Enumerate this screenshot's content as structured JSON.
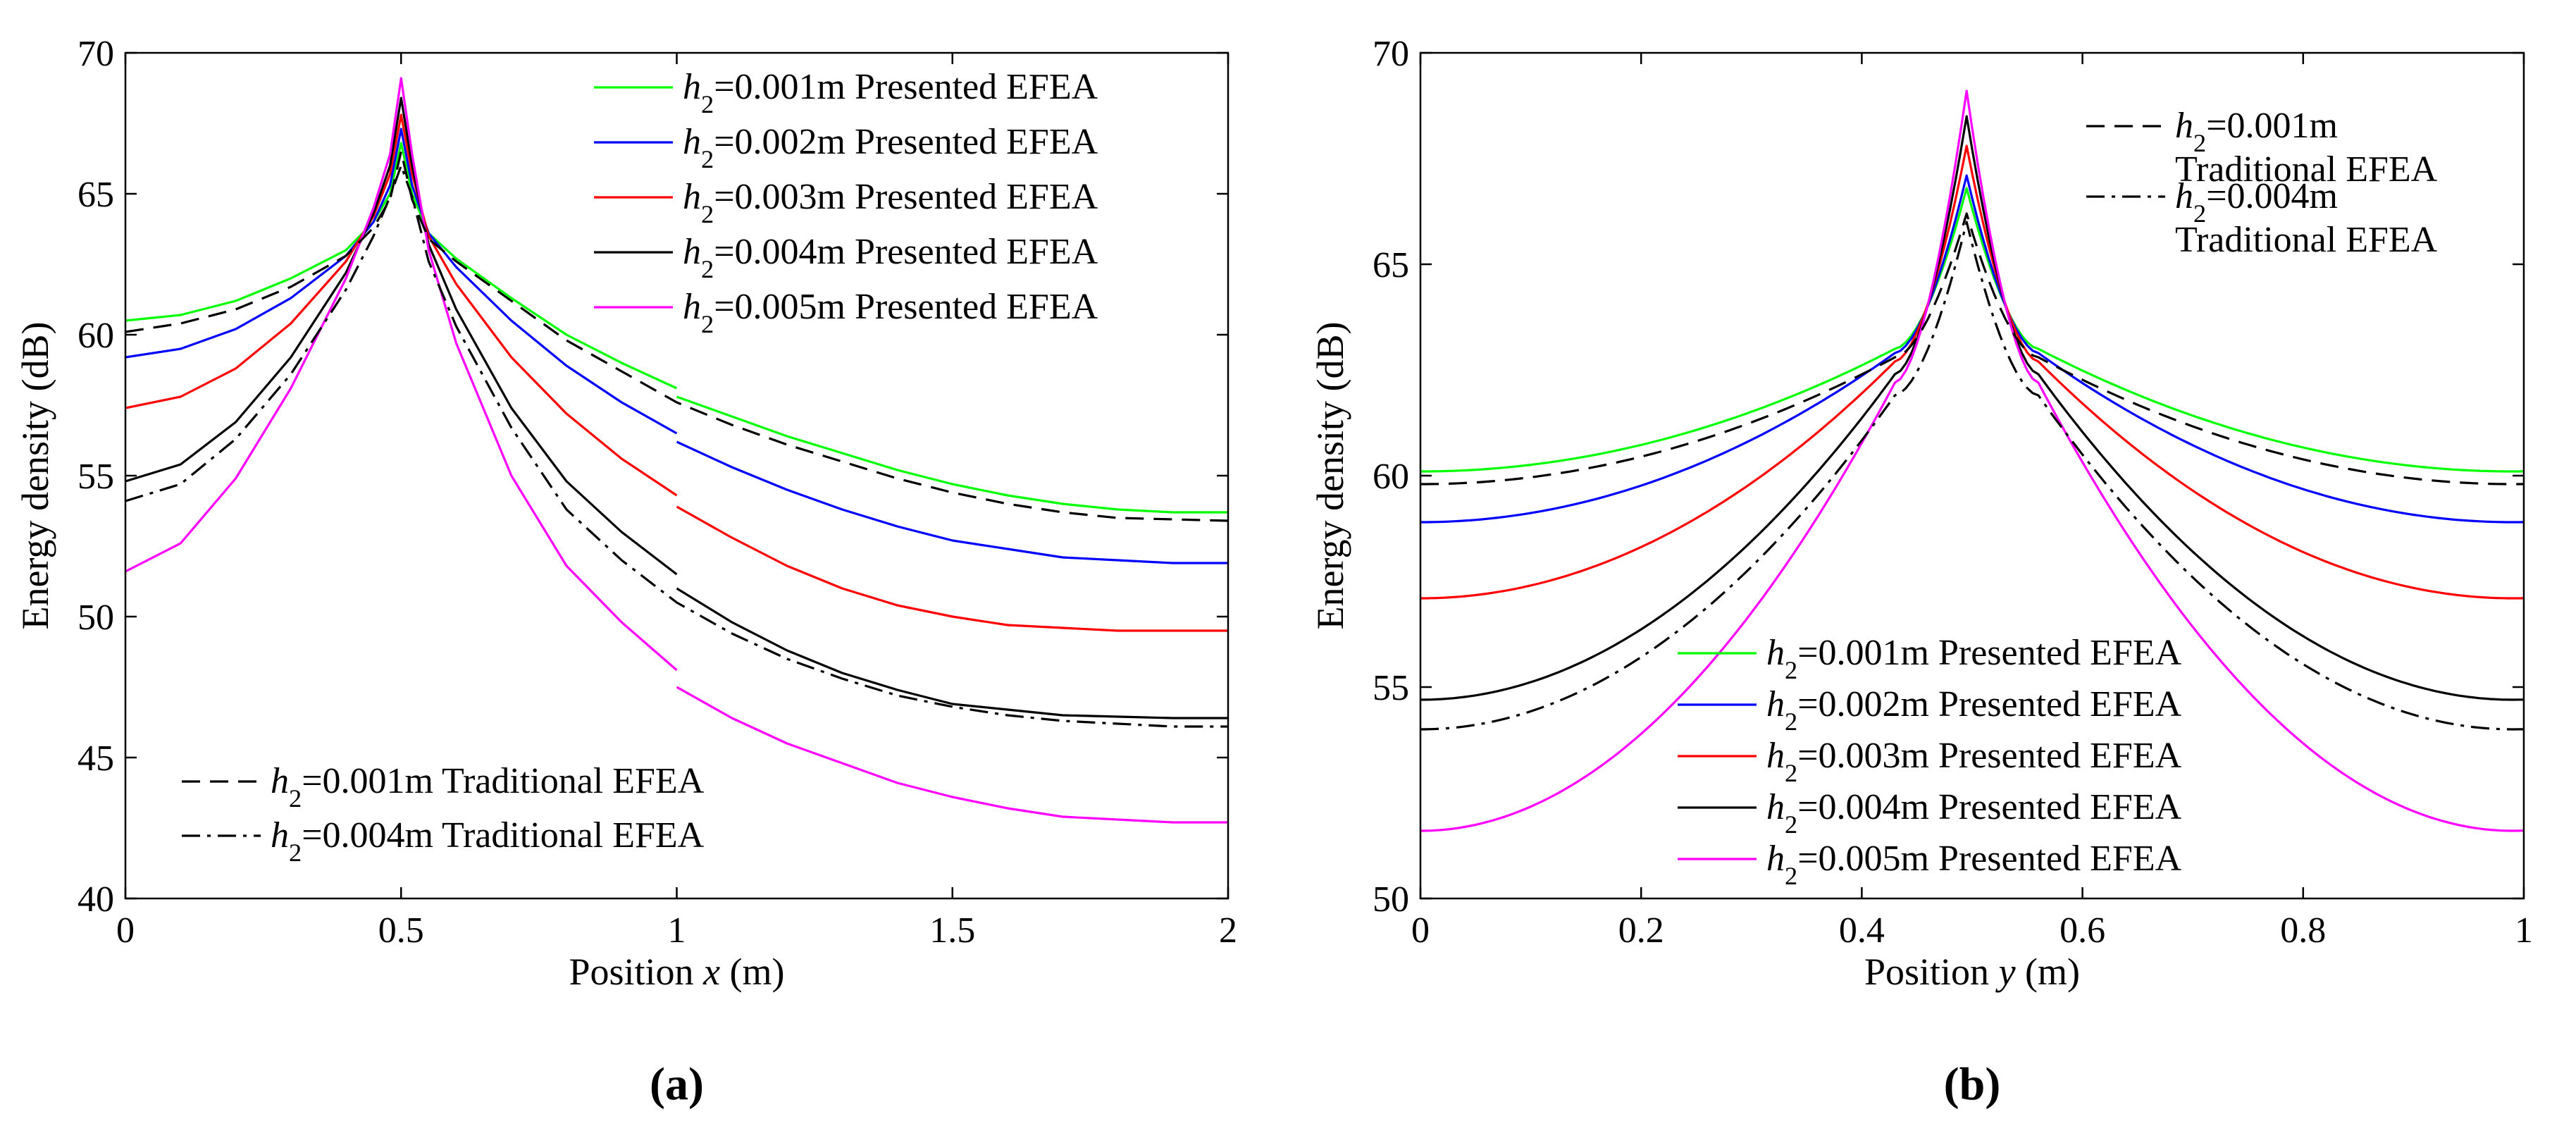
{
  "chart_data": [
    {
      "panel_label": "(a)",
      "type": "line",
      "xlabel_prefix": "Position ",
      "xlabel_var": "x",
      "xlabel_suffix": " (m)",
      "ylabel": "Energy density (dB)",
      "xlim": [
        0,
        2
      ],
      "ylim": [
        40,
        70
      ],
      "xticks": [
        0,
        0.5,
        1,
        1.5,
        2
      ],
      "xtick_labels": [
        "0",
        "0.5",
        "1",
        "1.5",
        "2"
      ],
      "yticks": [
        40,
        45,
        50,
        55,
        60,
        65,
        70
      ],
      "ytick_labels": [
        "40",
        "45",
        "50",
        "55",
        "60",
        "65",
        "70"
      ],
      "legend_placement": "top-right",
      "legend2_placement": "bottom-left",
      "series": [
        {
          "id": "a-h1-pres",
          "h": "0.001",
          "label": "=0.001m Presented EFEA",
          "legend": 1,
          "color": "#00ff00",
          "dash": "solid",
          "x": [
            0,
            0.1,
            0.2,
            0.3,
            0.4,
            0.45,
            0.48,
            0.5,
            0.52,
            0.55,
            0.6,
            0.7,
            0.8,
            0.9,
            1.0,
            1.0,
            1.1,
            1.2,
            1.3,
            1.4,
            1.5,
            1.6,
            1.7,
            1.8,
            1.9,
            2.0
          ],
          "y": [
            60.5,
            60.7,
            61.2,
            62.0,
            63.0,
            64.0,
            65.0,
            66.8,
            65.0,
            63.6,
            62.7,
            61.3,
            60.0,
            59.0,
            58.1,
            57.8,
            57.1,
            56.4,
            55.8,
            55.2,
            54.7,
            54.3,
            54.0,
            53.8,
            53.7,
            53.7
          ]
        },
        {
          "id": "a-h2-pres",
          "h": "0.002",
          "label": "=0.002m Presented EFEA",
          "legend": 1,
          "color": "#0000ff",
          "dash": "solid",
          "x": [
            0,
            0.1,
            0.2,
            0.3,
            0.4,
            0.45,
            0.48,
            0.5,
            0.52,
            0.55,
            0.6,
            0.7,
            0.8,
            0.9,
            1.0,
            1.0,
            1.1,
            1.2,
            1.3,
            1.4,
            1.5,
            1.6,
            1.7,
            1.8,
            1.9,
            2.0
          ],
          "y": [
            59.2,
            59.5,
            60.2,
            61.3,
            62.8,
            64.0,
            65.3,
            67.3,
            65.3,
            63.6,
            62.4,
            60.5,
            58.9,
            57.6,
            56.5,
            56.2,
            55.3,
            54.5,
            53.8,
            53.2,
            52.7,
            52.4,
            52.1,
            52.0,
            51.9,
            51.9
          ]
        },
        {
          "id": "a-h3-pres",
          "h": "0.003",
          "label": "=0.003m Presented EFEA",
          "legend": 1,
          "color": "#ff0000",
          "dash": "solid",
          "x": [
            0,
            0.1,
            0.2,
            0.3,
            0.4,
            0.45,
            0.48,
            0.5,
            0.52,
            0.55,
            0.6,
            0.7,
            0.8,
            0.9,
            1.0,
            1.0,
            1.1,
            1.2,
            1.3,
            1.4,
            1.5,
            1.6,
            1.7,
            1.8,
            1.9,
            2.0
          ],
          "y": [
            57.4,
            57.8,
            58.8,
            60.4,
            62.6,
            64.2,
            65.7,
            67.8,
            65.7,
            63.5,
            61.8,
            59.2,
            57.2,
            55.6,
            54.3,
            53.9,
            52.8,
            51.8,
            51.0,
            50.4,
            50.0,
            49.7,
            49.6,
            49.5,
            49.5,
            49.5
          ]
        },
        {
          "id": "a-h4-pres",
          "h": "0.004",
          "label": "=0.004m Presented EFEA",
          "legend": 1,
          "color": "#000000",
          "dash": "solid",
          "x": [
            0,
            0.1,
            0.2,
            0.3,
            0.4,
            0.45,
            0.48,
            0.5,
            0.52,
            0.55,
            0.6,
            0.7,
            0.8,
            0.9,
            1.0,
            1.0,
            1.1,
            1.2,
            1.3,
            1.4,
            1.5,
            1.6,
            1.7,
            1.8,
            1.9,
            2.0
          ],
          "y": [
            54.8,
            55.4,
            56.9,
            59.2,
            62.2,
            64.3,
            66.0,
            68.4,
            66.0,
            63.2,
            60.9,
            57.4,
            54.8,
            53.0,
            51.5,
            51.0,
            49.8,
            48.8,
            48.0,
            47.4,
            46.9,
            46.7,
            46.5,
            46.45,
            46.4,
            46.4
          ]
        },
        {
          "id": "a-h5-pres",
          "h": "0.005",
          "label": "=0.005m Presented EFEA",
          "legend": 1,
          "color": "#ff00ff",
          "dash": "solid",
          "x": [
            0,
            0.1,
            0.2,
            0.3,
            0.4,
            0.45,
            0.48,
            0.5,
            0.52,
            0.55,
            0.6,
            0.7,
            0.8,
            0.9,
            1.0,
            1.0,
            1.1,
            1.2,
            1.3,
            1.4,
            1.5,
            1.6,
            1.7,
            1.8,
            1.9,
            2.0
          ],
          "y": [
            51.6,
            52.6,
            54.9,
            58.1,
            62.0,
            64.5,
            66.4,
            69.1,
            66.4,
            63.0,
            59.7,
            55.0,
            51.8,
            49.8,
            48.1,
            47.5,
            46.4,
            45.5,
            44.8,
            44.1,
            43.6,
            43.2,
            42.9,
            42.8,
            42.7,
            42.7
          ]
        },
        {
          "id": "a-h1-trad",
          "h": "0.001",
          "label": "=0.001m Traditional EFEA",
          "legend": 2,
          "color": "#000000",
          "dash": "dash",
          "x": [
            0,
            0.1,
            0.2,
            0.3,
            0.4,
            0.45,
            0.48,
            0.5,
            0.52,
            0.55,
            0.6,
            0.7,
            0.8,
            0.9,
            1.0,
            1.1,
            1.2,
            1.3,
            1.4,
            1.5,
            1.6,
            1.7,
            1.8,
            1.9,
            2.0
          ],
          "y": [
            60.1,
            60.4,
            60.9,
            61.7,
            62.8,
            63.8,
            64.8,
            66.5,
            64.8,
            63.4,
            62.6,
            61.2,
            59.8,
            58.7,
            57.6,
            56.8,
            56.1,
            55.5,
            54.9,
            54.4,
            54.0,
            53.7,
            53.5,
            53.45,
            53.4
          ]
        },
        {
          "id": "a-h4-trad",
          "h": "0.004",
          "label": "=0.004m Traditional EFEA",
          "legend": 2,
          "color": "#000000",
          "dash": "dashdot",
          "x": [
            0,
            0.1,
            0.2,
            0.3,
            0.4,
            0.45,
            0.48,
            0.5,
            0.52,
            0.55,
            0.6,
            0.7,
            0.8,
            0.9,
            1.0,
            1.1,
            1.2,
            1.3,
            1.4,
            1.5,
            1.6,
            1.7,
            1.8,
            1.9,
            2.0
          ],
          "y": [
            54.1,
            54.7,
            56.3,
            58.6,
            61.6,
            63.5,
            64.9,
            66.0,
            64.9,
            62.6,
            60.3,
            56.7,
            53.8,
            52.0,
            50.5,
            49.4,
            48.5,
            47.8,
            47.2,
            46.8,
            46.5,
            46.3,
            46.2,
            46.1,
            46.1
          ]
        }
      ]
    },
    {
      "panel_label": "(b)",
      "type": "line",
      "xlabel_prefix": "Position ",
      "xlabel_var": "y",
      "xlabel_suffix": " (m)",
      "ylabel": "Energy density (dB)",
      "xlim": [
        0,
        1
      ],
      "ylim": [
        50,
        70
      ],
      "xticks": [
        0,
        0.2,
        0.4,
        0.6,
        0.8,
        1.0
      ],
      "xtick_labels": [
        "0",
        "0.2",
        "0.4",
        "0.6",
        "0.8",
        "1"
      ],
      "yticks": [
        50,
        55,
        60,
        65,
        70
      ],
      "ytick_labels": [
        "50",
        "55",
        "60",
        "65",
        "70"
      ],
      "legend_placement": "bottom-center",
      "legend2_placement": "top-right",
      "series": [
        {
          "id": "b-h1-pres",
          "h": "0.001",
          "label": "=0.001m Presented EFEA",
          "legend": 1,
          "color": "#00ff00",
          "dash": "solid",
          "peak": 66.8,
          "edge": 60.1,
          "cross": 63.0
        },
        {
          "id": "b-h2-pres",
          "h": "0.002",
          "label": "=0.002m Presented EFEA",
          "legend": 1,
          "color": "#0000ff",
          "dash": "solid",
          "peak": 67.1,
          "edge": 58.9,
          "cross": 62.9
        },
        {
          "id": "b-h3-pres",
          "h": "0.003",
          "label": "=0.003m Presented EFEA",
          "legend": 1,
          "color": "#ff0000",
          "dash": "solid",
          "peak": 67.8,
          "edge": 57.1,
          "cross": 62.7
        },
        {
          "id": "b-h4-pres",
          "h": "0.004",
          "label": "=0.004m Presented EFEA",
          "legend": 1,
          "color": "#000000",
          "dash": "solid",
          "peak": 68.5,
          "edge": 54.7,
          "cross": 62.4
        },
        {
          "id": "b-h5-pres",
          "h": "0.005",
          "label": "=0.005m Presented EFEA",
          "legend": 1,
          "color": "#ff00ff",
          "dash": "solid",
          "peak": 69.1,
          "edge": 51.6,
          "cross": 62.2
        },
        {
          "id": "b-h1-trad",
          "h": "0.001",
          "label": "=0.001m",
          "label2": "Traditional EFEA",
          "legend": 2,
          "color": "#000000",
          "dash": "dash",
          "peak": 66.2,
          "edge": 59.8,
          "cross": 62.8
        },
        {
          "id": "b-h4-trad",
          "h": "0.004",
          "label": "=0.004m",
          "label2": "Traditional EFEA",
          "legend": 2,
          "color": "#000000",
          "dash": "dashdot",
          "peak": 66.0,
          "edge": 54.0,
          "cross": 61.9
        }
      ]
    }
  ]
}
